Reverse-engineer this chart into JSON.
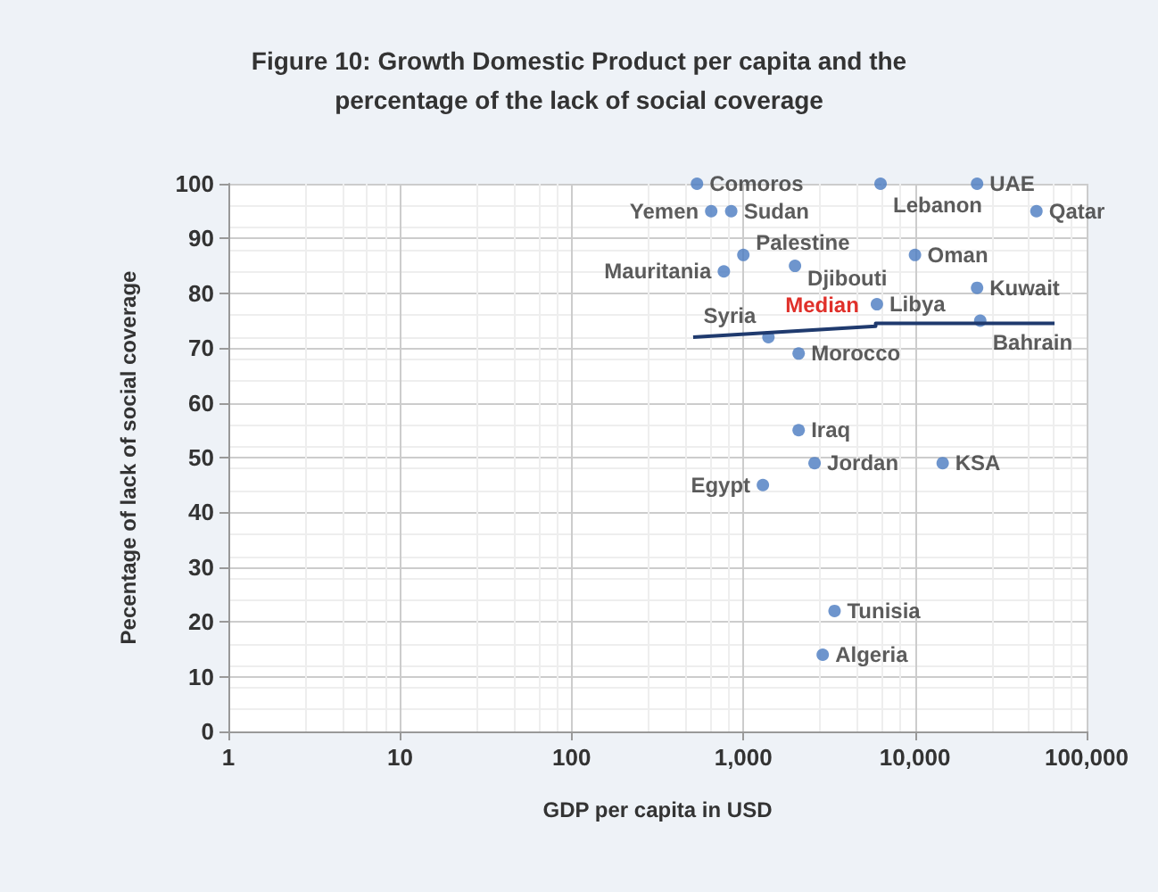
{
  "chart_data": {
    "type": "scatter",
    "title": "Figure 10: Growth Domestic Product per capita and the\npercentage of the lack of social coverage",
    "xlabel": "GDP per capita in USD",
    "ylabel": "Pecentage of lack of social coverage",
    "log": "x",
    "xlim": [
      1,
      100000
    ],
    "xticks": [
      1,
      10,
      100,
      {
        "value": 1000,
        "label": "1,000"
      },
      {
        "value": 10000,
        "label": "10,000"
      },
      {
        "value": 100000,
        "label": "100,000"
      }
    ],
    "ylim": [
      0,
      100
    ],
    "yticks": [
      0,
      10,
      20,
      30,
      40,
      50,
      60,
      70,
      80,
      90,
      100
    ],
    "grid": true,
    "marker": "circle",
    "series": [
      {
        "color": "#4a7bc0",
        "x": [
          537,
          650,
          850,
          6300,
          23000,
          51000,
          1000,
          2000,
          10000,
          23000,
          770,
          6000,
          24000,
          1400,
          2100,
          2100,
          2600,
          14500,
          1300,
          3400,
          2900
        ],
        "values": [
          100,
          95,
          95,
          100,
          100,
          95,
          87,
          85,
          87,
          81,
          84,
          78,
          75,
          72,
          69,
          55,
          49,
          49,
          45,
          22,
          14
        ],
        "value_labels": [
          "Comoros",
          "Yemen",
          "Sudan",
          "Lebanon",
          "UAE",
          "Qatar",
          "Palestine",
          "Djibouti",
          "Oman",
          "Kuwait",
          "Mauritania",
          "Libya",
          "Bahrain",
          "Syria",
          "Morocco",
          "Iraq",
          "Jordan",
          "KSA",
          "Egypt",
          "Tunisia",
          "Algeria"
        ]
      },
      {
        "type": "line",
        "color": "#1f3a6e",
        "marker": "none",
        "x": [
          510,
          5900,
          5900,
          65000
        ],
        "values": [
          72,
          74,
          74.5,
          74.5
        ]
      }
    ],
    "annotations": [
      "Median"
    ]
  }
}
